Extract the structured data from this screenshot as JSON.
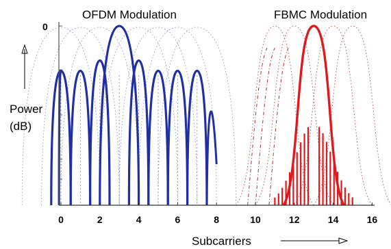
{
  "chart_data": [
    {
      "type": "line",
      "title": "OFDM Modulation",
      "ylabel_line1": "Power",
      "ylabel_line2": "(dB)",
      "y_tick_label": "0",
      "xlim": [
        0,
        8
      ],
      "subcarrier_centers": [
        0,
        1,
        2,
        3,
        4,
        5,
        6,
        7
      ],
      "highlighted_subcarrier": 3,
      "peak_db_highlighted": 0,
      "sidelobe_peak_db": -13,
      "color": "#1f2fa5",
      "ghost_color": "#9a9ac2"
    },
    {
      "type": "line",
      "title": "FBMC Modulation",
      "xlim": [
        10,
        16
      ],
      "subcarrier_centers": [
        10,
        11,
        12,
        13,
        14,
        15,
        16
      ],
      "highlighted_subcarrier": 13,
      "peak_db_highlighted": 0,
      "color": "#e0191c",
      "ghost_color": "#b05a5a"
    }
  ],
  "x_ticks": [
    "0",
    "2",
    "4",
    "6",
    "8",
    "10",
    "12",
    "14",
    "16"
  ],
  "xlabel": "Subcarriers"
}
